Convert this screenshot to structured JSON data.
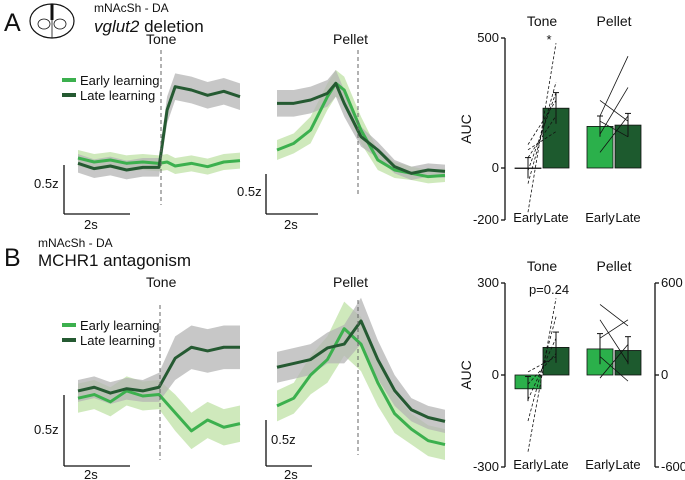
{
  "colors": {
    "early": "#3cb04e",
    "early_band": "#bfe2a5",
    "late": "#255a32",
    "late_band": "#b4b4b4",
    "bar_early": "#2bb04b",
    "bar_late": "#1d5a2e"
  },
  "panel_a": {
    "letter": "A",
    "region": "mNAcSh - DA",
    "condition_italic": "vglut2",
    "condition_rest": " deletion",
    "tone_title": "Tone",
    "pellet_title": "Pellet",
    "legend_early": "Early learning",
    "legend_late": "Late learning",
    "scale_y": "0.5z",
    "scale_x": "2s"
  },
  "panel_b": {
    "letter": "B",
    "region": "mNAcSh - DA",
    "condition": "MCHR1 antagonism",
    "tone_title": "Tone",
    "pellet_title": "Pellet",
    "legend_early": "Early learning",
    "legend_late": "Late learning",
    "scale_y": "0.5z",
    "scale_x": "2s"
  },
  "chart_data": [
    {
      "type": "line",
      "title": "vglut2 deletion – Tone (mNAcSh - DA)",
      "xlabel": "time (scale bar 2s)",
      "ylabel": "z-score (scale bar 0.5z)",
      "xlim": [
        -5,
        5
      ],
      "ylim": [
        -0.6,
        1.8
      ],
      "event_x": 0,
      "series": [
        {
          "name": "Early learning",
          "x": [
            -5,
            -4,
            -3,
            -2,
            -1,
            0,
            0.5,
            1,
            2,
            3,
            4,
            5
          ],
          "y": [
            0.18,
            0.12,
            0.15,
            0.1,
            0.12,
            0.1,
            0.12,
            0.06,
            0.1,
            0.05,
            0.12,
            0.14
          ],
          "err": [
            0.12,
            0.12,
            0.12,
            0.12,
            0.12,
            0.12,
            0.12,
            0.12,
            0.12,
            0.12,
            0.12,
            0.12
          ]
        },
        {
          "name": "Late learning",
          "x": [
            -5,
            -4,
            -3,
            -2,
            -1,
            0,
            0.5,
            1,
            2,
            3,
            4,
            5
          ],
          "y": [
            0.1,
            0.02,
            0.06,
            0.0,
            0.04,
            0.04,
            0.9,
            1.25,
            1.2,
            1.12,
            1.18,
            1.1
          ],
          "err": [
            0.14,
            0.14,
            0.14,
            0.14,
            0.14,
            0.14,
            0.2,
            0.2,
            0.2,
            0.2,
            0.2,
            0.2
          ]
        }
      ]
    },
    {
      "type": "line",
      "title": "vglut2 deletion – Pellet (mNAcSh - DA)",
      "xlabel": "time (scale bar 2s)",
      "ylabel": "z-score (scale bar 0.5z)",
      "xlim": [
        -5,
        5
      ],
      "ylim": [
        -0.6,
        1.8
      ],
      "event_x": 0,
      "series": [
        {
          "name": "Early learning",
          "x": [
            -5,
            -4,
            -3,
            -2,
            -1.5,
            -1,
            0,
            1,
            2,
            3,
            4,
            5
          ],
          "y": [
            0.3,
            0.4,
            0.6,
            1.1,
            1.3,
            1.2,
            0.6,
            0.15,
            0.0,
            -0.05,
            -0.1,
            -0.08
          ],
          "err": [
            0.15,
            0.15,
            0.2,
            0.2,
            0.2,
            0.2,
            0.2,
            0.15,
            0.12,
            0.1,
            0.1,
            0.1
          ]
        },
        {
          "name": "Late learning",
          "x": [
            -5,
            -4,
            -3,
            -2,
            -1.5,
            -1,
            0,
            1,
            2,
            3,
            4,
            5
          ],
          "y": [
            1.0,
            1.0,
            1.05,
            1.15,
            1.3,
            1.0,
            0.5,
            0.3,
            0.05,
            -0.05,
            0.0,
            -0.02
          ],
          "err": [
            0.2,
            0.2,
            0.2,
            0.2,
            0.2,
            0.2,
            0.15,
            0.12,
            0.1,
            0.1,
            0.1,
            0.1
          ]
        }
      ]
    },
    {
      "type": "bar",
      "title": "vglut2 deletion – AUC",
      "ylabel": "AUC",
      "ylim": [
        -200,
        500
      ],
      "yticks": [
        -200,
        0,
        500
      ],
      "groups": [
        "Tone",
        "Pellet"
      ],
      "categories": [
        "Early",
        "Late"
      ],
      "series": [
        {
          "name": "Tone",
          "values": [
            0,
            230
          ],
          "err": [
            40,
            60
          ]
        },
        {
          "name": "Pellet",
          "values": [
            160,
            165
          ],
          "err": [
            40,
            45
          ]
        }
      ],
      "annotation": "*"
    },
    {
      "type": "line",
      "title": "MCHR1 antagonism – Tone (mNAcSh - DA)",
      "xlabel": "time (scale bar 2s)",
      "ylabel": "z-score (scale bar 0.5z)",
      "xlim": [
        -5,
        5
      ],
      "ylim": [
        -1.0,
        1.2
      ],
      "event_x": 0,
      "series": [
        {
          "name": "Early learning",
          "x": [
            -5,
            -4,
            -3,
            -2,
            -1,
            0,
            1,
            2,
            3,
            4,
            5
          ],
          "y": [
            -0.15,
            -0.1,
            -0.2,
            -0.05,
            -0.12,
            -0.1,
            -0.35,
            -0.6,
            -0.45,
            -0.55,
            -0.5
          ],
          "err": [
            0.2,
            0.2,
            0.2,
            0.2,
            0.2,
            0.2,
            0.25,
            0.25,
            0.25,
            0.25,
            0.25
          ]
        },
        {
          "name": "Late learning",
          "x": [
            -5,
            -4,
            -3,
            -2,
            -1,
            0,
            1,
            2,
            3,
            4,
            5
          ],
          "y": [
            -0.05,
            0.0,
            -0.08,
            -0.02,
            -0.05,
            0.0,
            0.4,
            0.55,
            0.5,
            0.55,
            0.55
          ],
          "err": [
            0.15,
            0.15,
            0.15,
            0.15,
            0.15,
            0.2,
            0.3,
            0.3,
            0.3,
            0.3,
            0.3
          ]
        }
      ]
    },
    {
      "type": "line",
      "title": "MCHR1 antagonism – Pellet (mNAcSh - DA)",
      "xlabel": "time (scale bar 2s)",
      "ylabel": "z-score (scale bar 0.5z)",
      "xlim": [
        -5,
        5
      ],
      "ylim": [
        -1.0,
        1.2
      ],
      "event_x": 0,
      "series": [
        {
          "name": "Early learning",
          "x": [
            -5,
            -4,
            -3,
            -2,
            -1,
            0,
            1,
            2,
            3,
            4,
            5
          ],
          "y": [
            -0.3,
            -0.2,
            0.1,
            0.3,
            0.7,
            0.5,
            0.0,
            -0.4,
            -0.6,
            -0.75,
            -0.8
          ],
          "err": [
            0.2,
            0.2,
            0.25,
            0.3,
            0.35,
            0.35,
            0.3,
            0.25,
            0.2,
            0.2,
            0.2
          ]
        },
        {
          "name": "Late learning",
          "x": [
            -5,
            -4,
            -3,
            -2,
            -1,
            0,
            1,
            2,
            3,
            4,
            5
          ],
          "y": [
            0.2,
            0.25,
            0.3,
            0.45,
            0.5,
            0.8,
            0.3,
            -0.1,
            -0.35,
            -0.45,
            -0.5
          ],
          "err": [
            0.2,
            0.2,
            0.2,
            0.2,
            0.25,
            0.3,
            0.25,
            0.2,
            0.15,
            0.15,
            0.15
          ]
        }
      ]
    },
    {
      "type": "bar",
      "title": "MCHR1 antagonism – AUC",
      "ylabel": "AUC",
      "ylim": [
        -300,
        300
      ],
      "yticks": [
        -300,
        0,
        300
      ],
      "y2lim": [
        -600,
        600
      ],
      "y2ticks": [
        -600,
        0,
        600
      ],
      "groups": [
        "Tone",
        "Pellet"
      ],
      "categories": [
        "Early",
        "Late"
      ],
      "series": [
        {
          "name": "Tone",
          "values": [
            -45,
            90
          ],
          "err": [
            40,
            50
          ]
        },
        {
          "name": "Pellet",
          "values": [
            85,
            80
          ],
          "err": [
            50,
            45
          ]
        }
      ],
      "annotation": "p=0.24"
    }
  ]
}
